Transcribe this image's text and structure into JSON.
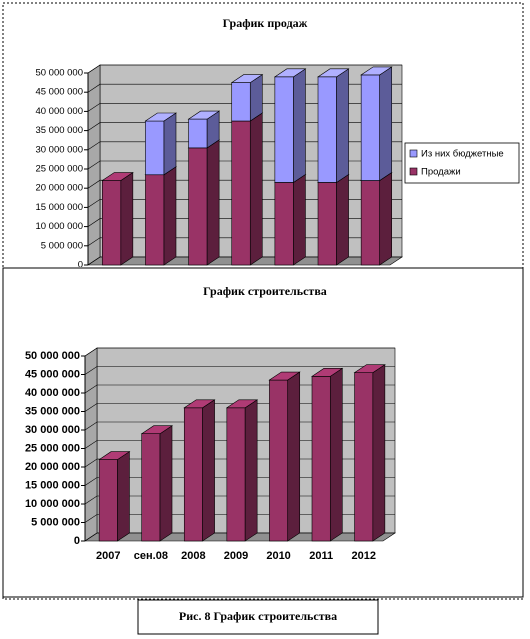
{
  "chart_data": [
    {
      "type": "bar",
      "stacked": true,
      "title": "График продаж",
      "series": [
        {
          "name": "Продажи",
          "color": "#993366",
          "values": [
            22000000,
            23500000,
            30500000,
            37500000,
            21500000,
            21500000,
            22000000
          ]
        },
        {
          "name": "Из них бюджетные",
          "color": "#9999ff",
          "values": [
            0,
            14000000,
            7500000,
            10000000,
            27500000,
            27500000,
            27500000
          ]
        }
      ],
      "ylim": [
        0,
        50000000
      ],
      "yticks": [
        {
          "value": 0,
          "label": "0"
        },
        {
          "value": 5000000,
          "label": "5 000 000"
        },
        {
          "value": 10000000,
          "label": "10 000 000"
        },
        {
          "value": 15000000,
          "label": "15 000 000"
        },
        {
          "value": 20000000,
          "label": "20 000 000"
        },
        {
          "value": 25000000,
          "label": "25 000 000"
        },
        {
          "value": 30000000,
          "label": "30 000 000"
        },
        {
          "value": 35000000,
          "label": "35 000 000"
        },
        {
          "value": 40000000,
          "label": "40 000 000"
        },
        {
          "value": 45000000,
          "label": "45 000 000"
        },
        {
          "value": 50000000,
          "label": "50 000 000"
        }
      ],
      "grid": true,
      "legend": "right"
    },
    {
      "type": "bar",
      "title": "График строительства",
      "categories": [
        "2007",
        "сен.08",
        "2008",
        "2009",
        "2010",
        "2011",
        "2012"
      ],
      "values": [
        22000000,
        29000000,
        36000000,
        36000000,
        43500000,
        44500000,
        45500000
      ],
      "color": "#993366",
      "ylim": [
        0,
        50000000
      ],
      "yticks": [
        {
          "value": 0,
          "label": "0"
        },
        {
          "value": 5000000,
          "label": "5 000 000"
        },
        {
          "value": 10000000,
          "label": "10 000 000"
        },
        {
          "value": 15000000,
          "label": "15 000 000"
        },
        {
          "value": 20000000,
          "label": "20 000 000"
        },
        {
          "value": 25000000,
          "label": "25 000 000"
        },
        {
          "value": 30000000,
          "label": "30 000 000"
        },
        {
          "value": 35000000,
          "label": "35 000 000"
        },
        {
          "value": 40000000,
          "label": "40 000 000"
        },
        {
          "value": 45000000,
          "label": "45 000 000"
        },
        {
          "value": 50000000,
          "label": "50 000 000"
        }
      ],
      "grid": true
    }
  ],
  "caption": "Рис. 8 График строительства"
}
